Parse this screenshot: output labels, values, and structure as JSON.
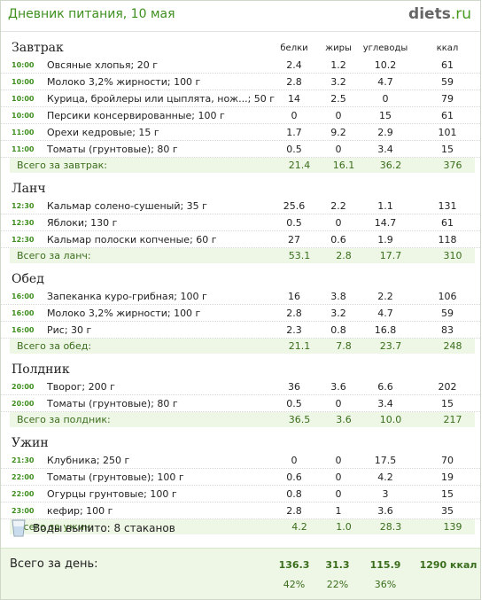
{
  "header": {
    "title": "Дневник питания, 10 мая",
    "logo": {
      "main": "diets",
      "suffix": ".ru"
    }
  },
  "columns": [
    "белки",
    "жиры",
    "углеводы",
    "ккал"
  ],
  "meals": [
    {
      "title": "Завтрак",
      "items": [
        [
          "10:00",
          "Овсяные хлопья; 20 г",
          "2.4",
          "1.2",
          "10.2",
          "61"
        ],
        [
          "10:00",
          "Молоко 3,2% жирности; 100 г",
          "2.8",
          "3.2",
          "4.7",
          "59"
        ],
        [
          "10:00",
          "Курица, бройлеры или цыплята, нож...; 50 г",
          "14",
          "2.5",
          "0",
          "79"
        ],
        [
          "10:00",
          "Персики консервированные; 100 г",
          "0",
          "0",
          "15",
          "61"
        ],
        [
          "11:00",
          "Орехи кедровые; 15 г",
          "1.7",
          "9.2",
          "2.9",
          "101"
        ],
        [
          "11:00",
          "Томаты (грунтовые); 80 г",
          "0.5",
          "0",
          "3.4",
          "15"
        ]
      ],
      "total": [
        "Всего за завтрак:",
        "21.4",
        "16.1",
        "36.2",
        "376"
      ]
    },
    {
      "title": "Ланч",
      "items": [
        [
          "12:30",
          "Кальмар солено-сушеный; 35 г",
          "25.6",
          "2.2",
          "1.1",
          "131"
        ],
        [
          "12:30",
          "Яблоки; 130 г",
          "0.5",
          "0",
          "14.7",
          "61"
        ],
        [
          "12:30",
          "Кальмар полоски копченые; 60 г",
          "27",
          "0.6",
          "1.9",
          "118"
        ]
      ],
      "total": [
        "Всего за ланч:",
        "53.1",
        "2.8",
        "17.7",
        "310"
      ]
    },
    {
      "title": "Обед",
      "items": [
        [
          "16:00",
          "Запеканка куро-грибная; 100 г",
          "16",
          "3.8",
          "2.2",
          "106"
        ],
        [
          "16:00",
          "Молоко 3,2% жирности; 100 г",
          "2.8",
          "3.2",
          "4.7",
          "59"
        ],
        [
          "16:00",
          "Рис; 30 г",
          "2.3",
          "0.8",
          "16.8",
          "83"
        ]
      ],
      "total": [
        "Всего за обед:",
        "21.1",
        "7.8",
        "23.7",
        "248"
      ]
    },
    {
      "title": "Полдник",
      "items": [
        [
          "20:00",
          "Творог; 200 г",
          "36",
          "3.6",
          "6.6",
          "202"
        ],
        [
          "20:00",
          "Томаты (грунтовые); 80 г",
          "0.5",
          "0",
          "3.4",
          "15"
        ]
      ],
      "total": [
        "Всего за полдник:",
        "36.5",
        "3.6",
        "10.0",
        "217"
      ]
    },
    {
      "title": "Ужин",
      "items": [
        [
          "21:30",
          "Клубника; 250 г",
          "0",
          "0",
          "17.5",
          "70"
        ],
        [
          "22:00",
          "Томаты (грунтовые); 100 г",
          "0.6",
          "0",
          "4.2",
          "19"
        ],
        [
          "22:00",
          "Огурцы грунтовые; 100 г",
          "0.8",
          "0",
          "3",
          "15"
        ],
        [
          "23:00",
          "кефир; 100 г",
          "2.8",
          "1",
          "3.6",
          "35"
        ]
      ],
      "total": [
        "Всего за ужин:",
        "4.2",
        "1.0",
        "28.3",
        "139"
      ]
    }
  ],
  "water": "Воды выпито: 8 стаканов",
  "day": {
    "label": "Всего за день:",
    "values": [
      "136.3",
      "31.3",
      "115.9",
      "1290 ккал"
    ],
    "percents": [
      "42%",
      "22%",
      "36%"
    ]
  }
}
